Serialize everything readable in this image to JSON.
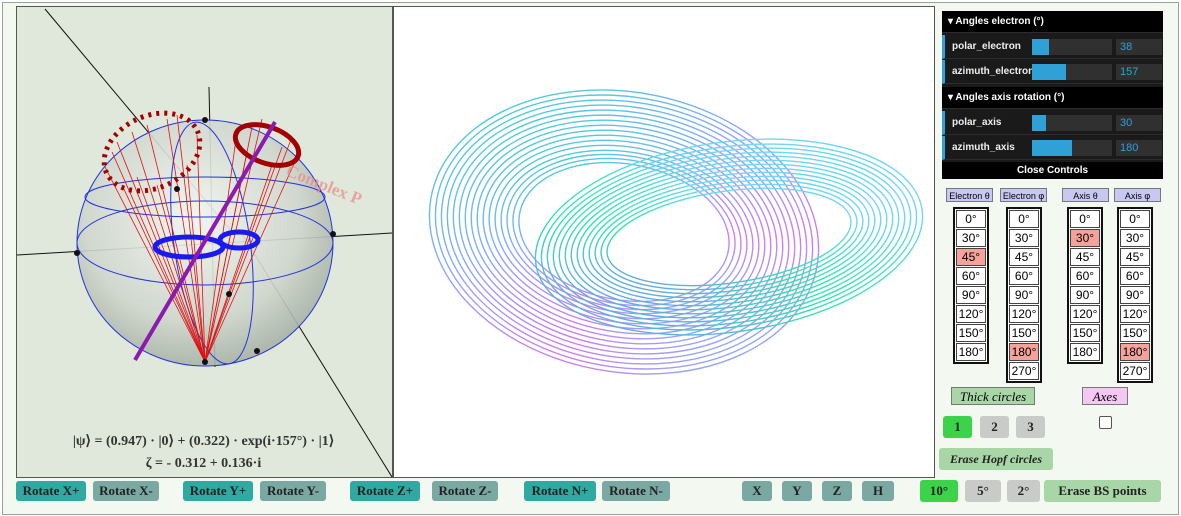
{
  "bloch": {
    "watermark": "Complex P",
    "formula1": "|ψ⟩ = (0.947) · |0⟩ + (0.322) · exp(i·157°) · |1⟩",
    "formula2": "ζ = - 0.312 + 0.136·i"
  },
  "controls": {
    "folder1": "▾ Angles electron (°)",
    "polar_electron": {
      "label": "polar_electron",
      "value": "38",
      "fraction": 0.21
    },
    "azimuth_electron": {
      "label": "azimuth_electron",
      "value": "157",
      "fraction": 0.43
    },
    "folder2": "▾ Angles axis rotation (°)",
    "polar_axis": {
      "label": "polar_axis",
      "value": "30",
      "fraction": 0.17
    },
    "azimuth_axis": {
      "label": "azimuth_axis",
      "value": "180",
      "fraction": 0.5
    },
    "close": "Close Controls"
  },
  "angle_columns": [
    {
      "header": "Electron θ",
      "values": [
        "0°",
        "30°",
        "45°",
        "60°",
        "90°",
        "120°",
        "150°",
        "180°"
      ],
      "selected": "45°"
    },
    {
      "header": "Electron φ",
      "values": [
        "0°",
        "30°",
        "45°",
        "60°",
        "90°",
        "120°",
        "150°",
        "180°",
        "270°"
      ],
      "selected": "180°"
    },
    {
      "header": "Axis θ",
      "values": [
        "0°",
        "30°",
        "45°",
        "60°",
        "90°",
        "120°",
        "150°",
        "180°"
      ],
      "selected": "30°"
    },
    {
      "header": "Axis φ",
      "values": [
        "0°",
        "30°",
        "45°",
        "60°",
        "90°",
        "120°",
        "150°",
        "180°",
        "270°"
      ],
      "selected": "180°"
    }
  ],
  "toggles": {
    "thick": "Thick circles",
    "axes": "Axes"
  },
  "count_buttons": [
    "1",
    "2",
    "3"
  ],
  "erase_hopf": "Erase Hopf circles",
  "rotate_buttons": [
    "Rotate X+",
    "Rotate X-",
    "Rotate Y+",
    "Rotate Y-",
    "Rotate Z+",
    "Rotate Z-",
    "Rotate N+",
    "Rotate N-"
  ],
  "axis_buttons": [
    "X",
    "Y",
    "Z",
    "H"
  ],
  "step_buttons": [
    "10°",
    "5°",
    "2°"
  ],
  "erase_bs": "Erase BS points",
  "colors": {
    "teal": "#2fa9a2",
    "slider": "#2fa1d6",
    "selected": "#f4a29a",
    "green": "#3bd34a"
  }
}
